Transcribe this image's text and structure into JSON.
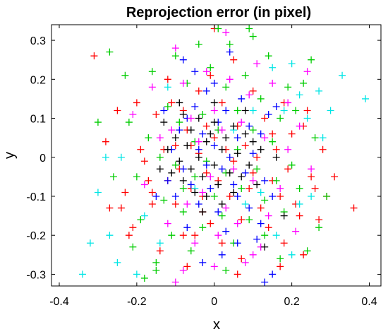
{
  "chart_data": {
    "type": "scatter",
    "title": "Reprojection error (in pixel)",
    "xlabel": "x",
    "ylabel": "y",
    "xlim": [
      -0.42,
      0.43
    ],
    "ylim": [
      -0.33,
      0.34
    ],
    "xticks": [
      "-0.4",
      "-0.2",
      "0",
      "0.2",
      "0.4"
    ],
    "yticks": [
      "0.3",
      "0.2",
      "0.1",
      "0",
      "-0.1",
      "-0.2",
      "-0.3"
    ],
    "marker": "plus",
    "grid": false,
    "series": [
      {
        "color": "#ff0000",
        "points": [
          [
            0.0,
            0.33
          ],
          [
            -0.31,
            0.26
          ],
          [
            -0.28,
            0.04
          ],
          [
            -0.27,
            -0.13
          ],
          [
            -0.24,
            -0.13
          ],
          [
            -0.22,
            -0.2
          ],
          [
            -0.21,
            -0.18
          ],
          [
            -0.2,
            0.14
          ],
          [
            -0.19,
            0.02
          ],
          [
            -0.18,
            -0.01
          ],
          [
            -0.17,
            -0.06
          ],
          [
            -0.16,
            -0.09
          ],
          [
            -0.16,
            -0.12
          ],
          [
            -0.15,
            0.11
          ],
          [
            -0.14,
            -0.24
          ],
          [
            -0.13,
            0.02
          ],
          [
            -0.12,
            0.2
          ],
          [
            -0.12,
            -0.06
          ],
          [
            -0.11,
            0.14
          ],
          [
            -0.1,
            -0.12
          ],
          [
            -0.1,
            0.03
          ],
          [
            -0.09,
            -0.03
          ],
          [
            -0.08,
            0.12
          ],
          [
            -0.08,
            -0.2
          ],
          [
            -0.07,
            0.07
          ],
          [
            -0.07,
            -0.28
          ],
          [
            -0.06,
            0.03
          ],
          [
            -0.06,
            -0.08
          ],
          [
            -0.05,
            -0.2
          ],
          [
            -0.04,
            0.17
          ],
          [
            -0.04,
            0.01
          ],
          [
            -0.03,
            -0.1
          ],
          [
            -0.03,
            -0.14
          ],
          [
            -0.02,
            0.08
          ],
          [
            -0.02,
            -0.04
          ],
          [
            -0.01,
            -0.17
          ],
          [
            0.0,
            0.05
          ],
          [
            0.01,
            -0.06
          ],
          [
            0.02,
            0.14
          ],
          [
            0.02,
            -0.22
          ],
          [
            0.03,
            0.02
          ],
          [
            0.04,
            -0.1
          ],
          [
            0.05,
            0.25
          ],
          [
            0.05,
            -0.01
          ],
          [
            0.06,
            0.08
          ],
          [
            0.07,
            -0.16
          ],
          [
            0.07,
            -0.26
          ],
          [
            0.08,
            0.03
          ],
          [
            0.09,
            -0.08
          ],
          [
            0.1,
            0.17
          ],
          [
            0.1,
            -0.04
          ],
          [
            0.11,
            0.0
          ],
          [
            0.12,
            -0.13
          ],
          [
            0.13,
            0.1
          ],
          [
            0.14,
            -0.18
          ],
          [
            0.15,
            0.06
          ],
          [
            0.15,
            -0.06
          ],
          [
            0.16,
            0.02
          ],
          [
            0.17,
            -0.1
          ],
          [
            0.18,
            0.14
          ],
          [
            0.18,
            -0.22
          ],
          [
            0.19,
            -0.03
          ],
          [
            0.2,
            0.06
          ],
          [
            0.21,
            -0.12
          ],
          [
            0.22,
            -0.15
          ],
          [
            0.23,
            0.08
          ],
          [
            0.23,
            -0.25
          ],
          [
            0.24,
            0.12
          ],
          [
            0.25,
            -0.05
          ],
          [
            0.26,
            -0.08
          ],
          [
            0.27,
            -0.16
          ],
          [
            0.28,
            0.02
          ],
          [
            0.29,
            -0.1
          ],
          [
            0.31,
            -0.05
          ],
          [
            0.36,
            -0.13
          ],
          [
            0.17,
            -0.28
          ],
          [
            -0.01,
            0.21
          ],
          [
            0.06,
            -0.3
          ],
          [
            -0.23,
            -0.09
          ],
          [
            -0.25,
            0.12
          ]
        ]
      },
      {
        "color": "#00cc00",
        "points": [
          [
            0.01,
            0.33
          ],
          [
            -0.27,
            0.27
          ],
          [
            -0.3,
            0.09
          ],
          [
            -0.26,
            -0.05
          ],
          [
            -0.23,
            0.21
          ],
          [
            -0.22,
            0.09
          ],
          [
            -0.2,
            -0.05
          ],
          [
            -0.19,
            -0.16
          ],
          [
            -0.18,
            -0.31
          ],
          [
            -0.17,
            0.05
          ],
          [
            -0.16,
            0.22
          ],
          [
            -0.15,
            -0.27
          ],
          [
            -0.14,
            0.0
          ],
          [
            -0.13,
            -0.11
          ],
          [
            -0.12,
            0.13
          ],
          [
            -0.11,
            -0.2
          ],
          [
            -0.1,
            0.26
          ],
          [
            -0.1,
            -0.02
          ],
          [
            -0.09,
            0.09
          ],
          [
            -0.08,
            -0.08
          ],
          [
            -0.08,
            -0.14
          ],
          [
            -0.07,
            0.19
          ],
          [
            -0.06,
            -0.24
          ],
          [
            -0.05,
            0.04
          ],
          [
            -0.05,
            -0.05
          ],
          [
            -0.04,
            0.29
          ],
          [
            -0.03,
            0.11
          ],
          [
            -0.03,
            -0.18
          ],
          [
            -0.02,
            -0.01
          ],
          [
            -0.01,
            0.23
          ],
          [
            0.0,
            -0.1
          ],
          [
            0.01,
            0.07
          ],
          [
            0.02,
            -0.15
          ],
          [
            0.03,
            0.18
          ],
          [
            0.03,
            -0.04
          ],
          [
            0.04,
            0.29
          ],
          [
            0.05,
            -0.22
          ],
          [
            0.06,
            0.12
          ],
          [
            0.06,
            0.02
          ],
          [
            0.07,
            -0.08
          ],
          [
            0.08,
            0.21
          ],
          [
            0.09,
            -0.16
          ],
          [
            0.1,
            0.07
          ],
          [
            0.1,
            0.31
          ],
          [
            0.11,
            -0.03
          ],
          [
            0.12,
            0.15
          ],
          [
            0.13,
            -0.11
          ],
          [
            0.13,
            -0.2
          ],
          [
            0.14,
            0.26
          ],
          [
            0.15,
            0.04
          ],
          [
            0.16,
            -0.06
          ],
          [
            0.17,
            0.1
          ],
          [
            0.18,
            -0.14
          ],
          [
            0.19,
            0.18
          ],
          [
            0.2,
            -0.02
          ],
          [
            0.21,
            0.12
          ],
          [
            0.22,
            -0.08
          ],
          [
            0.23,
            0.19
          ],
          [
            0.24,
            -0.24
          ],
          [
            0.25,
            0.25
          ],
          [
            0.26,
            0.05
          ],
          [
            0.27,
            -0.18
          ],
          [
            0.29,
            -0.1
          ],
          [
            -0.15,
            -0.29
          ],
          [
            0.09,
            0.33
          ],
          [
            0.17,
            -0.26
          ],
          [
            -0.21,
            -0.23
          ],
          [
            0.03,
            -0.29
          ]
        ]
      },
      {
        "color": "#0000ff",
        "points": [
          [
            -0.12,
            -0.06
          ],
          [
            -0.11,
            0.02
          ],
          [
            -0.1,
            -0.1
          ],
          [
            -0.09,
            0.07
          ],
          [
            -0.08,
            -0.03
          ],
          [
            -0.07,
            0.1
          ],
          [
            -0.07,
            -0.18
          ],
          [
            -0.06,
            -0.07
          ],
          [
            -0.05,
            0.13
          ],
          [
            -0.04,
            0.02
          ],
          [
            -0.04,
            -0.12
          ],
          [
            -0.03,
            0.06
          ],
          [
            -0.02,
            -0.02
          ],
          [
            -0.02,
            0.17
          ],
          [
            -0.01,
            -0.08
          ],
          [
            0.0,
            0.03
          ],
          [
            0.01,
            -0.14
          ],
          [
            0.01,
            0.09
          ],
          [
            0.02,
            -0.03
          ],
          [
            0.03,
            0.12
          ],
          [
            0.03,
            -0.19
          ],
          [
            0.04,
            0.0
          ],
          [
            0.05,
            -0.07
          ],
          [
            0.06,
            0.05
          ],
          [
            0.06,
            -0.1
          ],
          [
            0.07,
            0.15
          ],
          [
            0.08,
            -0.04
          ],
          [
            0.09,
            0.08
          ],
          [
            0.09,
            -0.13
          ],
          [
            0.1,
            0.01
          ],
          [
            0.11,
            -0.21
          ],
          [
            0.12,
            0.06
          ],
          [
            0.13,
            -0.06
          ],
          [
            0.14,
            0.11
          ],
          [
            0.15,
            -0.1
          ],
          [
            -0.08,
            0.25
          ],
          [
            -0.05,
            0.22
          ],
          [
            0.0,
            0.19
          ],
          [
            0.02,
            -0.25
          ],
          [
            0.06,
            -0.22
          ],
          [
            0.12,
            -0.17
          ],
          [
            -0.13,
            0.12
          ],
          [
            0.15,
            -0.3
          ],
          [
            0.16,
            0.13
          ],
          [
            -0.15,
            -0.1
          ],
          [
            0.13,
            -0.32
          ],
          [
            0.04,
            0.27
          ],
          [
            -0.03,
            -0.27
          ]
        ]
      },
      {
        "color": "#ff00ff",
        "points": [
          [
            -0.1,
            0.28
          ],
          [
            -0.08,
            0.19
          ],
          [
            -0.07,
            -0.12
          ],
          [
            -0.12,
            -0.17
          ],
          [
            -0.14,
            0.05
          ],
          [
            -0.06,
            0.1
          ],
          [
            -0.05,
            -0.22
          ],
          [
            -0.04,
            0.04
          ],
          [
            -0.03,
            -0.09
          ],
          [
            -0.02,
            0.22
          ],
          [
            -0.01,
            -0.05
          ],
          [
            0.0,
            0.12
          ],
          [
            0.01,
            -0.2
          ],
          [
            0.02,
            0.07
          ],
          [
            0.03,
            -0.13
          ],
          [
            0.04,
            0.2
          ],
          [
            0.05,
            -0.03
          ],
          [
            0.06,
            -0.17
          ],
          [
            0.07,
            0.09
          ],
          [
            0.08,
            -0.27
          ],
          [
            0.09,
            0.16
          ],
          [
            0.1,
            -0.06
          ],
          [
            0.11,
            0.24
          ],
          [
            0.12,
            -0.23
          ],
          [
            0.13,
            0.05
          ],
          [
            0.14,
            -0.15
          ],
          [
            0.15,
            0.19
          ],
          [
            0.17,
            -0.08
          ],
          [
            0.19,
            0.14
          ],
          [
            0.21,
            -0.19
          ],
          [
            0.22,
            0.08
          ],
          [
            0.24,
            0.22
          ],
          [
            0.25,
            -0.03
          ],
          [
            -0.21,
            0.11
          ],
          [
            -0.18,
            -0.07
          ],
          [
            -0.16,
            0.18
          ],
          [
            -0.1,
            -0.32
          ],
          [
            0.0,
            -0.28
          ],
          [
            0.03,
            0.32
          ],
          [
            0.1,
            -0.25
          ],
          [
            -0.08,
            -0.29
          ],
          [
            0.19,
            0.02
          ],
          [
            -0.11,
            0.07
          ]
        ]
      },
      {
        "color": "#00e5e5",
        "points": [
          [
            0.33,
            0.21
          ],
          [
            0.39,
            0.15
          ],
          [
            0.3,
            0.12
          ],
          [
            0.28,
            0.05
          ],
          [
            0.25,
            -0.1
          ],
          [
            -0.34,
            -0.3
          ],
          [
            -0.32,
            -0.22
          ],
          [
            -0.3,
            -0.09
          ],
          [
            -0.27,
            -0.2
          ],
          [
            -0.25,
            -0.27
          ],
          [
            -0.2,
            -0.3
          ],
          [
            -0.24,
            0.0
          ],
          [
            0.2,
            -0.25
          ],
          [
            0.22,
            0.16
          ],
          [
            0.24,
            0.1
          ],
          [
            0.16,
            -0.2
          ],
          [
            0.18,
            0.12
          ],
          [
            0.12,
            -0.09
          ],
          [
            0.05,
            0.07
          ],
          [
            -0.05,
            -0.08
          ],
          [
            0.08,
            -0.12
          ],
          [
            -0.18,
            -0.15
          ],
          [
            0.27,
            0.17
          ],
          [
            -0.28,
            0.0
          ],
          [
            0.15,
            0.23
          ],
          [
            0.2,
            0.24
          ],
          [
            -0.14,
            -0.22
          ],
          [
            0.22,
            -0.12
          ],
          [
            0.1,
            0.12
          ],
          [
            -0.12,
            0.18
          ]
        ]
      },
      {
        "color": "#000000",
        "points": [
          [
            -0.13,
            0.09
          ],
          [
            -0.12,
            0.02
          ],
          [
            -0.11,
            -0.04
          ],
          [
            -0.1,
            0.05
          ],
          [
            -0.09,
            -0.01
          ],
          [
            -0.08,
            -0.06
          ],
          [
            -0.08,
            0.11
          ],
          [
            -0.07,
            0.03
          ],
          [
            -0.06,
            -0.03
          ],
          [
            -0.06,
            0.07
          ],
          [
            -0.05,
            -0.09
          ],
          [
            -0.04,
            0.0
          ],
          [
            -0.04,
            0.1
          ],
          [
            -0.03,
            -0.05
          ],
          [
            -0.02,
            0.04
          ],
          [
            -0.02,
            -0.1
          ],
          [
            -0.01,
            0.06
          ],
          [
            0.0,
            -0.02
          ],
          [
            0.0,
            0.09
          ],
          [
            0.01,
            -0.07
          ],
          [
            0.02,
            0.02
          ],
          [
            0.02,
            -0.12
          ],
          [
            0.03,
            0.05
          ],
          [
            0.04,
            -0.04
          ],
          [
            0.05,
            0.08
          ],
          [
            0.05,
            -0.09
          ],
          [
            0.06,
            0.01
          ],
          [
            0.07,
            -0.05
          ],
          [
            0.08,
            0.06
          ],
          [
            0.09,
            -0.02
          ],
          [
            0.1,
            0.04
          ],
          [
            0.11,
            -0.07
          ],
          [
            0.12,
            0.02
          ],
          [
            -0.09,
            0.14
          ],
          [
            0.0,
            0.14
          ],
          [
            0.08,
            0.12
          ],
          [
            -0.03,
            -0.14
          ],
          [
            0.18,
            -0.15
          ],
          [
            0.13,
            -0.23
          ],
          [
            -0.14,
            -0.03
          ],
          [
            0.16,
            0.0
          ]
        ]
      }
    ]
  }
}
